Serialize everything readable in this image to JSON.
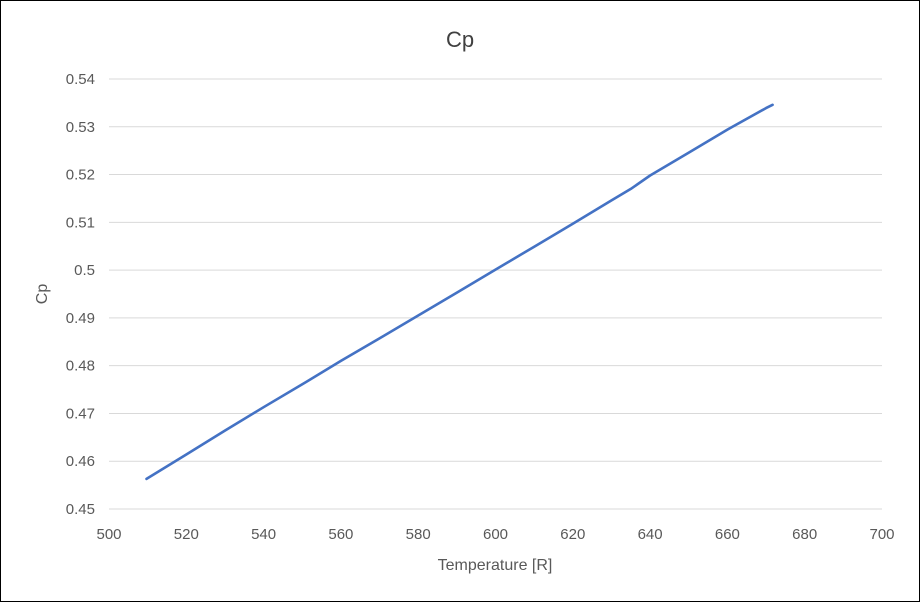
{
  "chart_data": {
    "type": "line",
    "title": "Cp",
    "xlabel": "Temperature [R]",
    "ylabel": "Cp",
    "xlim": [
      500,
      700
    ],
    "ylim": [
      0.45,
      0.54
    ],
    "x_ticks": [
      "500",
      "520",
      "540",
      "560",
      "580",
      "600",
      "620",
      "640",
      "660",
      "680",
      "700"
    ],
    "y_ticks": [
      "0.45",
      "0.46",
      "0.47",
      "0.48",
      "0.49",
      "0.5",
      "0.51",
      "0.52",
      "0.53",
      "0.54"
    ],
    "grid": "horizontal",
    "legend": "none",
    "series": [
      {
        "color": "#4472c4",
        "x": [
          509.7,
          520,
          530,
          540,
          550,
          560,
          570,
          580,
          590,
          600,
          610,
          620,
          630,
          635,
          640,
          650,
          660,
          670,
          671.7
        ],
        "y": [
          0.4563,
          0.4614,
          0.4664,
          0.4713,
          0.4761,
          0.481,
          0.4857,
          0.4905,
          0.4953,
          0.5001,
          0.5049,
          0.5097,
          0.5146,
          0.517,
          0.5198,
          0.5246,
          0.5294,
          0.5339,
          0.5346
        ]
      }
    ]
  }
}
